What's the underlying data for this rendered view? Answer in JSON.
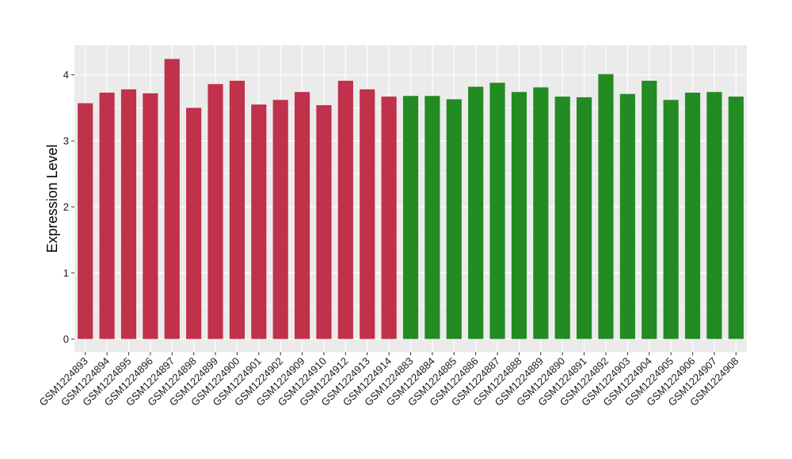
{
  "chart_data": {
    "type": "bar",
    "title": "",
    "xlabel": "",
    "ylabel": "Expression Level",
    "ylim": [
      -0.2,
      4.45
    ],
    "yticks": [
      0,
      1,
      2,
      3,
      4
    ],
    "grid": true,
    "background": "#ebebeb",
    "categories": [
      "GSM1224893",
      "GSM1224894",
      "GSM1224895",
      "GSM1224896",
      "GSM1224897",
      "GSM1224898",
      "GSM1224899",
      "GSM1224900",
      "GSM1224901",
      "GSM1224902",
      "GSM1224909",
      "GSM1224910",
      "GSM1224912",
      "GSM1224913",
      "GSM1224914",
      "GSM1224883",
      "GSM1224884",
      "GSM1224885",
      "GSM1224886",
      "GSM1224887",
      "GSM1224888",
      "GSM1224889",
      "GSM1224890",
      "GSM1224891",
      "GSM1224892",
      "GSM1224903",
      "GSM1224904",
      "GSM1224905",
      "GSM1224906",
      "GSM1224907",
      "GSM1224908"
    ],
    "values": [
      3.57,
      3.73,
      3.78,
      3.72,
      4.24,
      3.5,
      3.86,
      3.91,
      3.55,
      3.62,
      3.74,
      3.54,
      3.91,
      3.78,
      3.67,
      3.68,
      3.68,
      3.63,
      3.82,
      3.88,
      3.74,
      3.81,
      3.67,
      3.66,
      4.01,
      3.71,
      3.91,
      3.62,
      3.73,
      3.74,
      3.67
    ],
    "bar_colors": [
      "#c0314b",
      "#c0314b",
      "#c0314b",
      "#c0314b",
      "#c0314b",
      "#c0314b",
      "#c0314b",
      "#c0314b",
      "#c0314b",
      "#c0314b",
      "#c0314b",
      "#c0314b",
      "#c0314b",
      "#c0314b",
      "#c0314b",
      "#228b22",
      "#228b22",
      "#228b22",
      "#228b22",
      "#228b22",
      "#228b22",
      "#228b22",
      "#228b22",
      "#228b22",
      "#228b22",
      "#228b22",
      "#228b22",
      "#228b22",
      "#228b22",
      "#228b22",
      "#228b22"
    ]
  }
}
